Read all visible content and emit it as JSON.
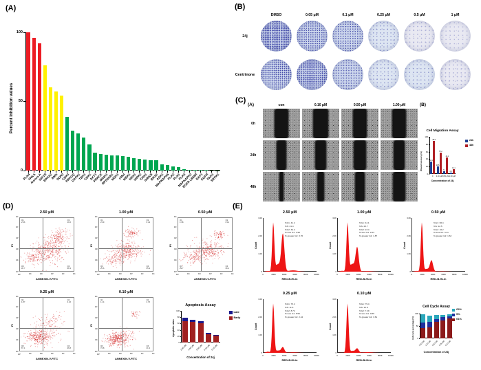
{
  "panels": {
    "a": {
      "letter": "(A)"
    },
    "b": {
      "letter": "(B)"
    },
    "c": {
      "letter": "(C)",
      "sub_a": "(A)",
      "sub_b": "(B)"
    },
    "d": {
      "letter": "(D)"
    },
    "e": {
      "letter": "(E)"
    }
  },
  "chart_data": [
    {
      "id": "kinase_inhibition",
      "type": "bar",
      "title": "",
      "ylabel": "Percent inhibition values",
      "ylim": [
        0,
        100
      ],
      "yticks": [
        0,
        50,
        100
      ],
      "colors": {
        "high": "#ec1c24",
        "mid": "#fff100",
        "low": "#00a650"
      },
      "bars": [
        {
          "label": "PLK4",
          "value": 100,
          "color": "#ec1c24"
        },
        {
          "label": "TRKA",
          "value": 96,
          "color": "#ec1c24"
        },
        {
          "label": "Aurora A",
          "value": 92,
          "color": "#ec1c24"
        },
        {
          "label": "IGF1R",
          "value": 76,
          "color": "#fff100"
        },
        {
          "label": "EPHA2",
          "value": 60,
          "color": "#fff100"
        },
        {
          "label": "BMX",
          "value": 57,
          "color": "#fff100"
        },
        {
          "label": "DDR2",
          "value": 54,
          "color": "#fff100"
        },
        {
          "label": "CDK3",
          "value": 39,
          "color": "#00a650"
        },
        {
          "label": "PRKCQ",
          "value": 29,
          "color": "#00a650"
        },
        {
          "label": "DAPK1",
          "value": 27,
          "color": "#00a650"
        },
        {
          "label": "TBK1",
          "value": 24,
          "color": "#00a650"
        },
        {
          "label": "CDK1",
          "value": 19,
          "color": "#00a650"
        },
        {
          "label": "AKT1",
          "value": 13,
          "color": "#00a650"
        },
        {
          "label": "PRKCE",
          "value": 12,
          "color": "#00a650"
        },
        {
          "label": "MINK1",
          "value": 11.5,
          "color": "#00a650"
        },
        {
          "label": "RPS6KB1",
          "value": 11,
          "color": "#00a650"
        },
        {
          "label": "MSK1",
          "value": 11,
          "color": "#00a650"
        },
        {
          "label": "cMet",
          "value": 10.5,
          "color": "#00a650"
        },
        {
          "label": "MEK1",
          "value": 10,
          "color": "#00a650"
        },
        {
          "label": "NEK1",
          "value": 9,
          "color": "#00a650"
        },
        {
          "label": "HIPK2",
          "value": 8.5,
          "color": "#00a650"
        },
        {
          "label": "CHK1",
          "value": 8,
          "color": "#00a650"
        },
        {
          "label": "IKBKB",
          "value": 7.5,
          "color": "#00a650"
        },
        {
          "label": "BRAF",
          "value": 7.5,
          "color": "#00a650"
        },
        {
          "label": "ASK1",
          "value": 4.5,
          "color": "#00a650"
        },
        {
          "label": "MAPKAPK5",
          "value": 4,
          "color": "#00a650"
        },
        {
          "label": "PLK2",
          "value": 3,
          "color": "#00a650"
        },
        {
          "label": "PLK1",
          "value": 2.5,
          "color": "#00a650"
        },
        {
          "label": "PLK3",
          "value": 0.8,
          "color": "#00a650"
        },
        {
          "label": "MAPKAPK2",
          "value": 0.5,
          "color": "#00a650"
        },
        {
          "label": "EGFR L858R",
          "value": 0.4,
          "color": "#00a650"
        },
        {
          "label": "RAF1",
          "value": 0.3,
          "color": "#00a650"
        },
        {
          "label": "EGFR",
          "value": 0.3,
          "color": "#00a650"
        },
        {
          "label": "PAK1",
          "value": 0.2,
          "color": "#00a650"
        },
        {
          "label": "SRPK1",
          "value": 0.2,
          "color": "#00a650"
        }
      ]
    },
    {
      "id": "cell_migration",
      "type": "grouped-bar",
      "title": "Cell Migration Assay",
      "ylabel": "Wound recovery (%)",
      "xlabel": "Concentration of 24j",
      "ylim": [
        0,
        100
      ],
      "yticks": [
        0,
        20,
        40,
        60,
        80,
        100
      ],
      "categories": [
        "0",
        "0.10 μM",
        "0.50 μM",
        "1.00 μM"
      ],
      "series": [
        {
          "name": "24h",
          "color": "#1f3f93",
          "values": [
            33.1,
            20.5,
            7.1,
            3.2
          ]
        },
        {
          "name": "48h",
          "color": "#b01f24",
          "values": [
            88.7,
            57.2,
            44.1,
            12.1
          ]
        }
      ],
      "legend": [
        "24h",
        "48h"
      ]
    },
    {
      "id": "apoptosis",
      "type": "stacked-bar",
      "title": "Apoptosis Assay",
      "ylabel": "Apoptotic rates",
      "xlabel": "Concentration of 24j",
      "ylim": [
        0,
        100
      ],
      "yticks": [
        0,
        20,
        40,
        60,
        80,
        100
      ],
      "categories": [
        "2.50 μM",
        "1.00 μM",
        "0.50 μM",
        "0.25 μM",
        "0.10 μM"
      ],
      "series": [
        {
          "name": "Early",
          "color": "#a02020",
          "values": [
            68.3,
            65.9,
            60.2,
            26.8,
            21.3
          ]
        },
        {
          "name": "Late",
          "color": "#1a1a8c",
          "values": [
            10.6,
            6.4,
            8.1,
            4.2,
            2.8
          ]
        }
      ],
      "legend": [
        "Late",
        "Early"
      ]
    },
    {
      "id": "cell_cycle",
      "type": "stacked-bar",
      "title": "Cell Cycle Assay",
      "ylabel": "Cell cycle percentage (%)",
      "xlabel": "Concentration of 24j",
      "ylim": [
        0,
        100
      ],
      "yticks": [
        0,
        50,
        100
      ],
      "categories": [
        "2.50 μM",
        "1.00 μM",
        "0.50 μM",
        "0.25 μM",
        "0.10 μM"
      ],
      "series": [
        {
          "name": "G1%",
          "color": "#8c1a1a",
          "values": [
            41.2,
            44.1,
            66.4,
            73.4,
            79.4
          ]
        },
        {
          "name": "S%",
          "color": "#1f2f9e",
          "values": [
            21.4,
            23.7,
            12.5,
            11.6,
            10.8
          ]
        },
        {
          "name": "G2%",
          "color": "#2aa7bb",
          "values": [
            34.4,
            23.4,
            16.2,
            8.72,
            7.29
          ]
        }
      ],
      "legend": [
        "G2%",
        "S%",
        "G1%"
      ]
    }
  ],
  "panel_b": {
    "columns": [
      "DMSO",
      "0.05 μM",
      "0.1 μM",
      "0.25 μM",
      "0.5 μM",
      "1 μM"
    ],
    "rows": [
      "24j",
      "Centrinone"
    ],
    "densities": [
      [
        0.95,
        0.8,
        0.7,
        0.3,
        0.12,
        0.03
      ],
      [
        0.85,
        0.9,
        0.65,
        0.25,
        0.18,
        0.12
      ]
    ]
  },
  "panel_c": {
    "columns": [
      "con",
      "0.10 μM",
      "0.50 μM",
      "1.00 μM"
    ],
    "rows": [
      "0h",
      "24h",
      "48h"
    ],
    "gap_fractions": [
      [
        0.34,
        0.36,
        0.32,
        0.34
      ],
      [
        0.22,
        0.27,
        0.3,
        0.27
      ],
      [
        0.07,
        0.16,
        0.24,
        0.3
      ]
    ]
  },
  "panel_d": {
    "xlabel": "ANNEXIN-V-FITC",
    "ylabel": "PI",
    "ticks": [
      "10⁰",
      "10¹",
      "10²",
      "10³",
      "10⁴",
      "10⁵"
    ],
    "plots": [
      {
        "title": "2.50 μM",
        "q1": "2.36",
        "q2": "10.6",
        "q3": "18.7",
        "q4": "68.3"
      },
      {
        "title": "1.00 μM",
        "q1": "2.09",
        "q2": "6.44",
        "q3": "25.6",
        "q4": "65.9"
      },
      {
        "title": "0.50 μM",
        "q1": "1.98",
        "q2": "8.12",
        "q3": "29.7",
        "q4": "60.2"
      },
      {
        "title": "0.25 μM",
        "q1": "1.87",
        "q2": "4.16",
        "q3": "67.1",
        "q4": "26.8"
      },
      {
        "title": "0.10 μM",
        "q1": "1.14",
        "q2": "2.76",
        "q3": "74.8",
        "q4": "21.3"
      }
    ]
  },
  "panel_e": {
    "xlabel": "RED-B-HLin",
    "ylabel": "Count",
    "xticks": [
      "0",
      "200K",
      "400K",
      "600K",
      "800K",
      "1000K"
    ],
    "yticks": [
      "0",
      "1.0K",
      "2.0K",
      "3.0K"
    ],
    "plots": [
      {
        "title": "2.50 μM",
        "stats": [
          "%G1: 41.2",
          "%S: 21.4",
          "%G2: 34.4",
          "% less G1: 1.98",
          "% greater G2: 3.76"
        ]
      },
      {
        "title": "1.00 μM",
        "stats": [
          "%G1: 44.1",
          "%S: 23.7",
          "%G2: 23.4",
          "% less G1: 2.63",
          "% greater G2: 1.87"
        ]
      },
      {
        "title": "0.50 μM",
        "stats": [
          "%G1: 66.4",
          "%S: 12.5",
          "%G2: 16.2",
          "% less G1: 3.41",
          "% greater G2: 1.63"
        ]
      },
      {
        "title": "0.25 μM",
        "stats": [
          "%G1: 73.4",
          "%S: 11.6",
          "%G2: 8.72",
          "% less G1: 5.56",
          "% greater G2: 2.44"
        ]
      },
      {
        "title": "0.10 μM",
        "stats": [
          "%G1: 79.4",
          "%S: 10.8",
          "%G2: 7.29",
          "% less G1: 0.89",
          "% greater G2: 3.61"
        ]
      }
    ]
  }
}
